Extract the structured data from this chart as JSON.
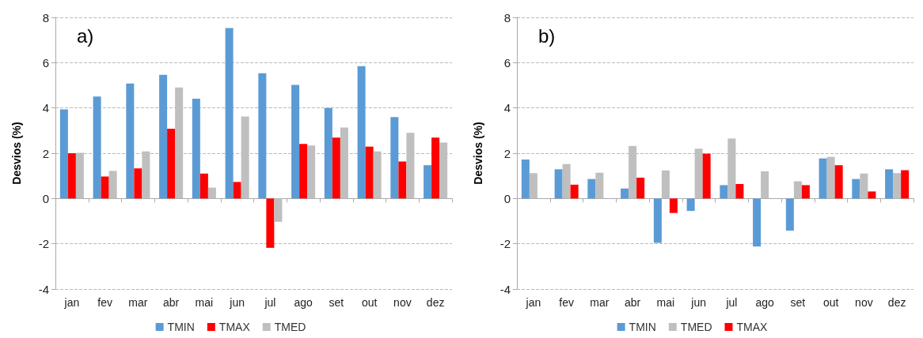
{
  "chart_data": [
    {
      "type": "bar",
      "title": "a)",
      "ylabel": "Desvios (%)",
      "categories": [
        "jan",
        "fev",
        "mar",
        "abr",
        "mai",
        "jun",
        "jul",
        "ago",
        "set",
        "out",
        "nov",
        "dez"
      ],
      "series": [
        {
          "name": "TMIN",
          "color": "#5b9bd5",
          "values": [
            3.94,
            4.5,
            5.08,
            5.46,
            4.41,
            7.53,
            5.53,
            5.02,
            4.0,
            5.85,
            3.6,
            1.47
          ]
        },
        {
          "name": "TMAX",
          "color": "#ff0000",
          "values": [
            2.0,
            0.97,
            1.33,
            3.08,
            1.1,
            0.73,
            -2.18,
            2.41,
            2.69,
            2.29,
            1.63,
            2.69
          ]
        },
        {
          "name": "TMED",
          "color": "#bfbfbf",
          "values": [
            2.02,
            1.22,
            2.08,
            4.9,
            0.48,
            3.62,
            -1.03,
            2.34,
            3.13,
            2.08,
            2.9,
            2.47
          ]
        }
      ],
      "ylim": [
        -4,
        8
      ],
      "yticks": [
        -4,
        -2,
        0,
        2,
        4,
        6,
        8
      ],
      "grid": "y",
      "legend": "bottom"
    },
    {
      "type": "bar",
      "title": "b)",
      "ylabel": "Desvios (%)",
      "categories": [
        "jan",
        "fev",
        "mar",
        "abr",
        "mai",
        "jun",
        "jul",
        "ago",
        "set",
        "out",
        "nov",
        "dez"
      ],
      "series": [
        {
          "name": "TMIN",
          "color": "#5b9bd5",
          "values": [
            1.72,
            1.29,
            0.86,
            0.44,
            -1.96,
            -0.55,
            0.59,
            -2.12,
            -1.42,
            1.77,
            0.86,
            1.29
          ]
        },
        {
          "name": "TMED",
          "color": "#bfbfbf",
          "values": [
            1.12,
            1.52,
            1.14,
            2.32,
            1.24,
            2.2,
            2.65,
            1.2,
            0.76,
            1.84,
            1.1,
            1.12
          ]
        },
        {
          "name": "TMAX",
          "color": "#ff0000",
          "values": [
            null,
            0.61,
            null,
            0.92,
            -0.64,
            1.98,
            0.64,
            null,
            0.59,
            1.47,
            0.31,
            1.25
          ]
        }
      ],
      "ylim": [
        -4,
        8
      ],
      "yticks": [
        -4,
        -2,
        0,
        2,
        4,
        6,
        8
      ],
      "grid": "y",
      "legend": "bottom"
    }
  ]
}
